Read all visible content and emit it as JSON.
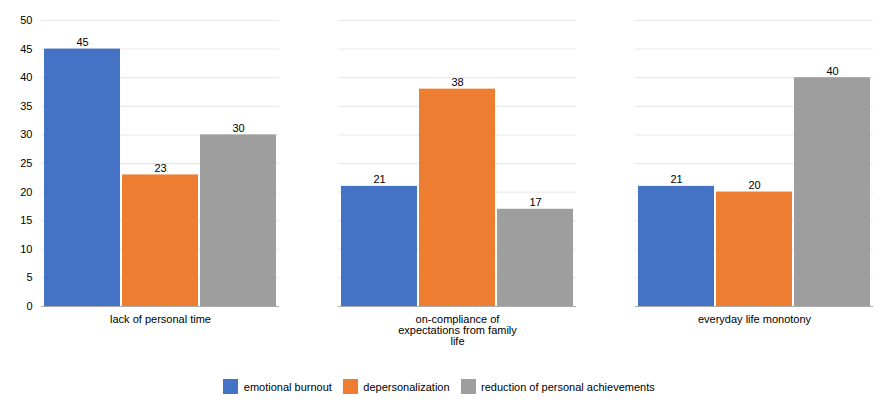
{
  "chart_data": {
    "type": "bar",
    "categories": [
      "lack of personal time",
      "on-compliance of\nexpectations from family\nlife",
      "everyday life monotony"
    ],
    "series": [
      {
        "name": "emotional burnout",
        "color": "#4472C4",
        "values": [
          45,
          21,
          21
        ]
      },
      {
        "name": "depersonalization",
        "color": "#ED7D31",
        "values": [
          23,
          38,
          20
        ]
      },
      {
        "name": "reduction of personal achievements",
        "color": "#9E9E9E",
        "values": [
          30,
          17,
          40
        ]
      }
    ],
    "ylim": [
      0,
      50
    ],
    "yticks": [
      0,
      5,
      10,
      15,
      20,
      25,
      30,
      35,
      40,
      45,
      50
    ],
    "grid": true,
    "legend": "bottom",
    "data_labels": true
  }
}
